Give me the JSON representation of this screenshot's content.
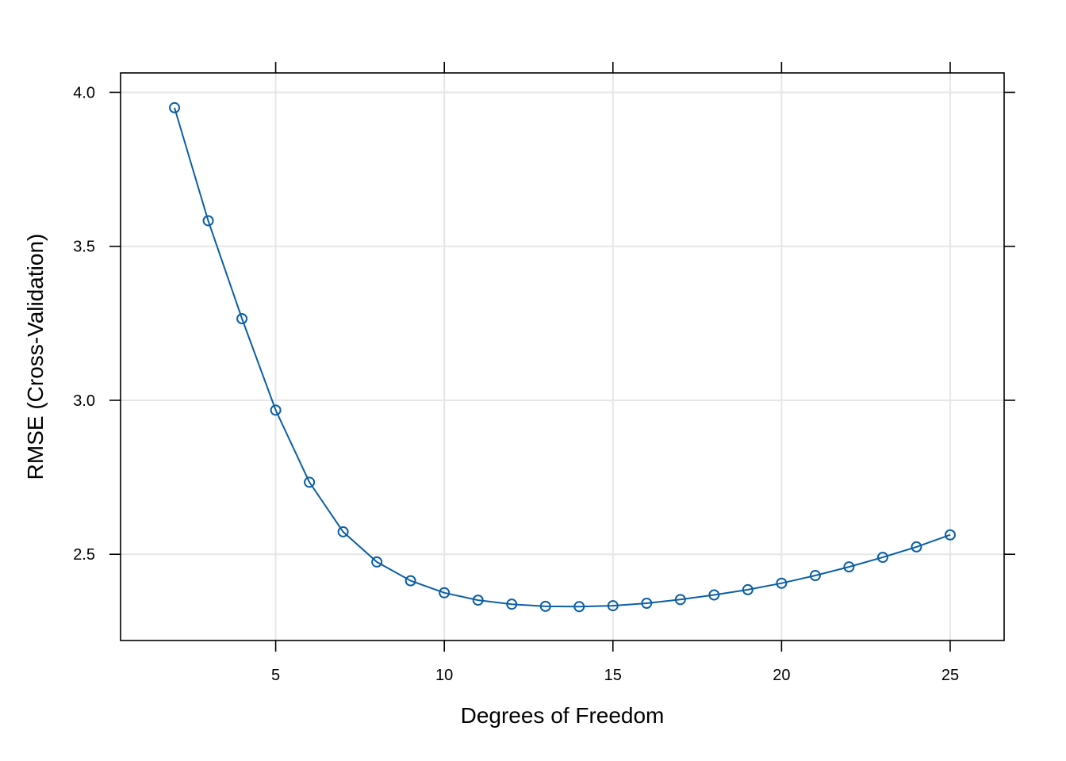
{
  "chart_data": {
    "type": "line",
    "title": "",
    "xlabel": "Degrees of Freedom",
    "ylabel": "RMSE (Cross-Validation)",
    "xlim": [
      0.4,
      26.6
    ],
    "ylim": [
      2.22,
      4.063
    ],
    "x_ticks": [
      5,
      10,
      15,
      20,
      25
    ],
    "y_ticks": [
      2.5,
      3.0,
      3.5,
      4.0
    ],
    "x_tick_labels": [
      "5",
      "10",
      "15",
      "20",
      "25"
    ],
    "y_tick_labels": [
      "2.5",
      "3.0",
      "3.5",
      "4.0"
    ],
    "grid": true,
    "legend": "none",
    "color": "#0b5fa5",
    "series": [
      {
        "x": [
          2,
          3,
          4,
          5,
          6,
          7,
          8,
          9,
          10,
          11,
          12,
          13,
          14,
          15,
          16,
          17,
          18,
          19,
          20,
          21,
          22,
          23,
          24,
          25
        ],
        "values": [
          3.95,
          3.583,
          3.265,
          2.968,
          2.734,
          2.573,
          2.475,
          2.414,
          2.375,
          2.351,
          2.338,
          2.331,
          2.33,
          2.333,
          2.341,
          2.353,
          2.368,
          2.385,
          2.406,
          2.431,
          2.459,
          2.49,
          2.524,
          2.563
        ]
      }
    ]
  }
}
